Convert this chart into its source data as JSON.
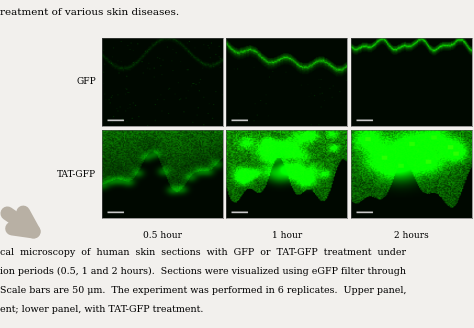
{
  "title_text": "reatment of various skin diseases.",
  "row_labels": [
    "GFP",
    "TAT-GFP"
  ],
  "col_labels": [
    "0.5 hour",
    "1 hour",
    "2 hours"
  ],
  "caption_lines": [
    "cal  microscopy  of  human  skin  sections  with  GFP  or  TAT-GFP  treatment  under",
    "ion periods (0.5, 1 and 2 hours).  Sections were visualized using eGFP filter through",
    "Scale bars are 50 μm.  The experiment was performed in 6 replicates.  Upper panel,",
    "ent; lower panel, with TAT-GFP treatment."
  ],
  "figure_bg": "#f2f0ed",
  "row_label_fontsize": 6.5,
  "col_label_fontsize": 6.5,
  "caption_fontsize": 6.8,
  "title_fontsize": 7.5
}
